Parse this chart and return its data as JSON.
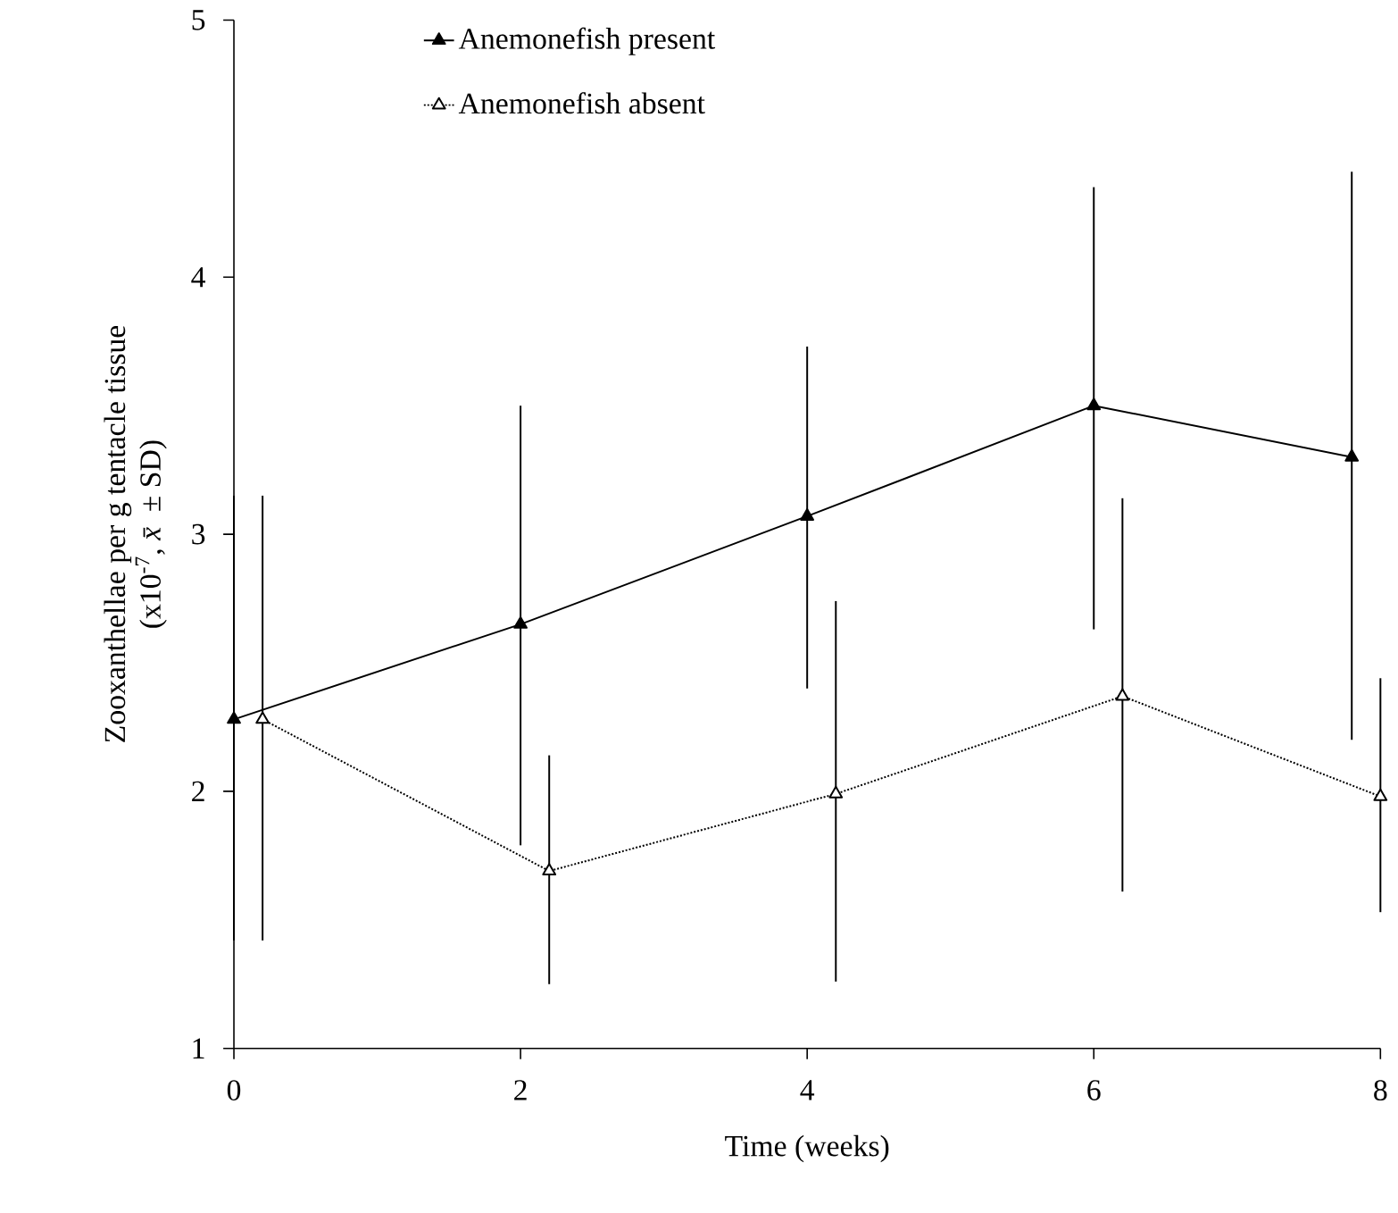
{
  "chart_data": {
    "type": "line",
    "xlabel": "Time (weeks)",
    "ylabel": "Zooxanthellae per g tentacle tissue\n(x10$^{-7}$, *x̄* ± SD)",
    "xlim": [
      0,
      8
    ],
    "ylim": [
      1,
      5
    ],
    "xticks": [
      0,
      2,
      4,
      6,
      8
    ],
    "yticks": [
      1,
      2,
      3,
      4,
      5
    ],
    "legend": "top",
    "marker": "triangle",
    "series": [
      {
        "name": "Anemonefish present",
        "color": "#000000",
        "line_style": "solid",
        "x": [
          0,
          2,
          4,
          6,
          7.8
        ],
        "values": [
          2.28,
          2.65,
          3.07,
          3.5,
          3.3
        ],
        "errors": [
          [
            1.42,
            3.15
          ],
          [
            1.79,
            3.5
          ],
          [
            2.4,
            3.73
          ],
          [
            2.63,
            4.35
          ],
          [
            2.2,
            4.41
          ]
        ]
      },
      {
        "name": "Anemonefish absent",
        "color": "#000000",
        "line_style": "dotted",
        "x": [
          0.2,
          2.2,
          4.2,
          6.2,
          8
        ],
        "values": [
          2.28,
          1.69,
          1.99,
          2.37,
          1.98
        ],
        "errors": [
          [
            1.42,
            3.15
          ],
          [
            1.25,
            2.14
          ],
          [
            1.26,
            2.74
          ],
          [
            1.61,
            3.14
          ],
          [
            1.53,
            2.44
          ]
        ]
      }
    ]
  }
}
